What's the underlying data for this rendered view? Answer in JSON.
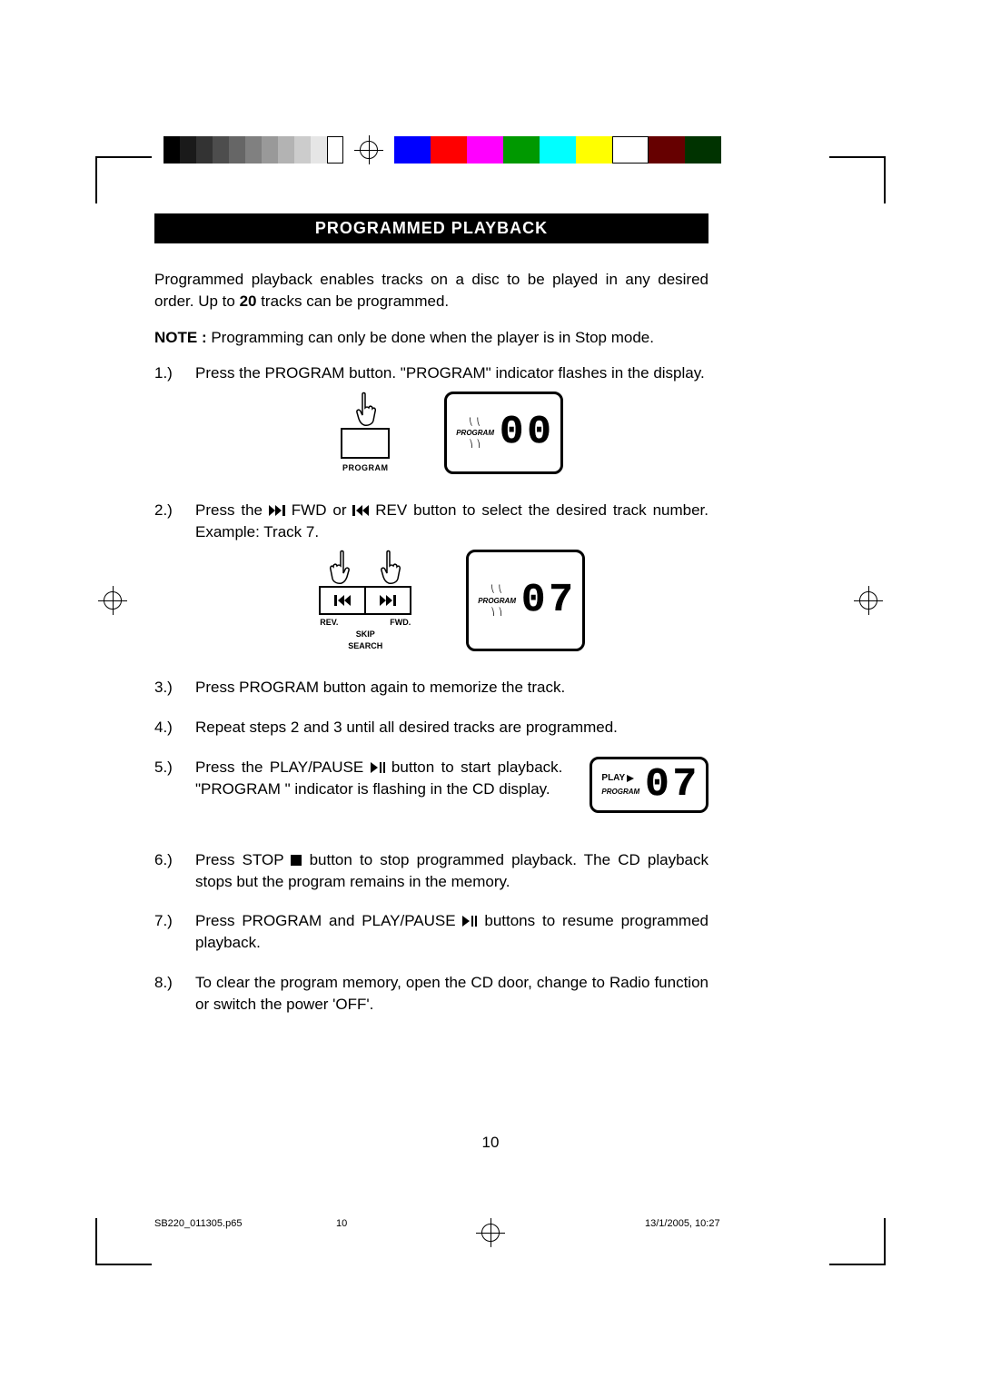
{
  "colorbar": {
    "grays": [
      "#000000",
      "#1a1a1a",
      "#333333",
      "#4d4d4d",
      "#666666",
      "#808080",
      "#999999",
      "#b3b3b3",
      "#cccccc",
      "#e6e6e6"
    ],
    "colors": [
      "#0000ff",
      "#ff0000",
      "#ff00ff",
      "#009900",
      "#00ffff",
      "#ffff00",
      "#ffffff",
      "#660000",
      "#003300"
    ]
  },
  "heading": "PROGRAMMED PLAYBACK",
  "intro_a": "Programmed playback enables tracks on a disc to be played in any desired order. Up to ",
  "intro_bold": "20",
  "intro_b": " tracks can be programmed.",
  "note_label": "NOTE : ",
  "note_text": "Programming can only be done when the player is in Stop mode.",
  "step1": {
    "num": "1.)",
    "text": "Press the PROGRAM button. \"PROGRAM\" indicator flashes in the display.",
    "button_label": "PROGRAM",
    "lcd_program": "PROGRAM",
    "lcd_digits": "00"
  },
  "step2": {
    "num": "2.)",
    "text_a": "Press the ",
    "text_b": " FWD or ",
    "text_c": " REV button to select the desired track number. Example: Track 7.",
    "labels": {
      "rev": "REV.",
      "fwd": "FWD.",
      "skip": "SKIP",
      "search": "SEARCH"
    },
    "lcd_program": "PROGRAM",
    "lcd_digits": "07"
  },
  "step3": {
    "num": "3.)",
    "text": "Press PROGRAM button again to memorize the track."
  },
  "step4": {
    "num": "4.)",
    "text": "Repeat steps 2 and 3 until all desired tracks are programmed."
  },
  "step5": {
    "num": "5.)",
    "text_a": "Press the PLAY/PAUSE ",
    "text_b": " button to start playback. \"PROGRAM \" indicator is flashing in the CD display.",
    "lcd_play": "PLAY",
    "lcd_program": "PROGRAM",
    "lcd_digits": "07"
  },
  "step6": {
    "num": "6.)",
    "text_a": "Press STOP ",
    "text_b": " button to stop programmed playback. The CD playback stops but the program remains in the memory."
  },
  "step7": {
    "num": "7.)",
    "text_a": "Press PROGRAM and PLAY/PAUSE ",
    "text_b": " buttons to resume programmed playback."
  },
  "step8": {
    "num": "8.)",
    "text": "To clear the program memory, open the CD door, change to Radio function or switch the power 'OFF'."
  },
  "page_number": "10",
  "footer": {
    "file": "SB220_011305.p65",
    "page": "10",
    "date": "13/1/2005, 10:27"
  }
}
